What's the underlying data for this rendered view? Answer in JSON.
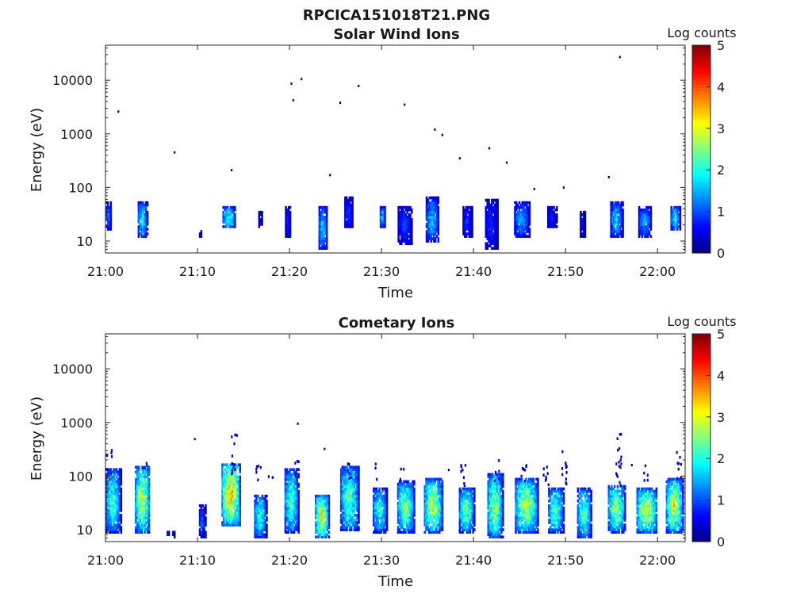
{
  "figure_title": "RPCICA151018T21.PNG",
  "chart_data": [
    {
      "type": "heatmap",
      "title": "Solar Wind Ions",
      "xlabel": "Time",
      "ylabel": "Energy (eV)",
      "yscale": "log",
      "ylim": [
        6,
        45000
      ],
      "xlim_minutes_after_2100": [
        0,
        63
      ],
      "x_tick_labels": [
        "21:00",
        "21:10",
        "21:20",
        "21:30",
        "21:40",
        "21:50",
        "22:00"
      ],
      "y_tick_labels": [
        "10",
        "100",
        "1000",
        "10000"
      ],
      "colorbar": {
        "label": "Log counts",
        "range": [
          0,
          5
        ],
        "tick_labels": [
          "0",
          "1",
          "2",
          "3",
          "4",
          "5"
        ],
        "colormap": "jet"
      },
      "blobs": [
        {
          "t": 0.3,
          "w": 0.6,
          "lo": 16,
          "hi": 55,
          "peak": 1.3
        },
        {
          "t": 4.0,
          "w": 1.0,
          "lo": 12,
          "hi": 55,
          "peak": 2.0
        },
        {
          "t": 10.3,
          "w": 0.3,
          "lo": 12,
          "hi": 16,
          "peak": 0.5
        },
        {
          "t": 13.4,
          "w": 1.4,
          "lo": 17,
          "hi": 45,
          "peak": 2.1
        },
        {
          "t": 16.8,
          "w": 0.4,
          "lo": 17,
          "hi": 35,
          "peak": 0.6
        },
        {
          "t": 19.8,
          "w": 0.6,
          "lo": 12,
          "hi": 45,
          "peak": 0.8
        },
        {
          "t": 23.6,
          "w": 0.9,
          "lo": 7,
          "hi": 45,
          "peak": 1.8
        },
        {
          "t": 26.4,
          "w": 0.9,
          "lo": 17,
          "hi": 65,
          "peak": 1.0
        },
        {
          "t": 30.1,
          "w": 0.6,
          "lo": 17,
          "hi": 45,
          "peak": 1.7
        },
        {
          "t": 32.5,
          "w": 1.5,
          "lo": 9,
          "hi": 45,
          "peak": 1.0
        },
        {
          "t": 35.5,
          "w": 1.4,
          "lo": 10,
          "hi": 65,
          "peak": 1.7
        },
        {
          "t": 39.3,
          "w": 1.0,
          "lo": 12,
          "hi": 45,
          "peak": 0.9
        },
        {
          "t": 41.9,
          "w": 1.3,
          "lo": 7,
          "hi": 60,
          "peak": 0.9
        },
        {
          "t": 45.2,
          "w": 1.6,
          "lo": 12,
          "hi": 55,
          "peak": 1.5
        },
        {
          "t": 48.5,
          "w": 1.0,
          "lo": 17,
          "hi": 45,
          "peak": 0.8
        },
        {
          "t": 51.8,
          "w": 0.5,
          "lo": 12,
          "hi": 35,
          "peak": 0.7
        },
        {
          "t": 55.5,
          "w": 1.3,
          "lo": 12,
          "hi": 55,
          "peak": 1.8
        },
        {
          "t": 58.6,
          "w": 1.4,
          "lo": 12,
          "hi": 45,
          "peak": 1.5
        },
        {
          "t": 61.9,
          "w": 1.0,
          "lo": 16,
          "hi": 45,
          "peak": 2.0
        }
      ],
      "isolated_points": [
        {
          "t": 1.4,
          "e": 2600
        },
        {
          "t": 7.5,
          "e": 450
        },
        {
          "t": 13.7,
          "e": 210
        },
        {
          "t": 20.2,
          "e": 8600
        },
        {
          "t": 20.4,
          "e": 4200
        },
        {
          "t": 21.3,
          "e": 10500
        },
        {
          "t": 24.4,
          "e": 170
        },
        {
          "t": 25.5,
          "e": 3800
        },
        {
          "t": 27.5,
          "e": 7800
        },
        {
          "t": 32.5,
          "e": 3500
        },
        {
          "t": 35.8,
          "e": 1200
        },
        {
          "t": 36.6,
          "e": 950
        },
        {
          "t": 38.5,
          "e": 350
        },
        {
          "t": 41.7,
          "e": 540
        },
        {
          "t": 43.6,
          "e": 290
        },
        {
          "t": 46.6,
          "e": 93
        },
        {
          "t": 49.8,
          "e": 100
        },
        {
          "t": 54.7,
          "e": 155
        },
        {
          "t": 55.9,
          "e": 27000
        }
      ]
    },
    {
      "type": "heatmap",
      "title": "Cometary Ions",
      "xlabel": "Time",
      "ylabel": "Energy (eV)",
      "yscale": "log",
      "ylim": [
        6,
        45000
      ],
      "xlim_minutes_after_2100": [
        0,
        63
      ],
      "x_tick_labels": [
        "21:00",
        "21:10",
        "21:20",
        "21:30",
        "21:40",
        "21:50",
        "22:00"
      ],
      "y_tick_labels": [
        "10",
        "100",
        "1000",
        "10000"
      ],
      "colorbar": {
        "label": "Log counts",
        "range": [
          0,
          5
        ],
        "tick_labels": [
          "0",
          "1",
          "2",
          "3",
          "4",
          "5"
        ],
        "colormap": "jet"
      },
      "blobs": [
        {
          "t": 0.8,
          "w": 1.6,
          "lo": 9,
          "hi": 140,
          "peak": 2.3
        },
        {
          "t": 4.0,
          "w": 1.6,
          "lo": 9,
          "hi": 160,
          "peak": 3.0
        },
        {
          "t": 6.8,
          "w": 0.3,
          "lo": 7,
          "hi": 10,
          "peak": 0.6
        },
        {
          "t": 7.4,
          "w": 0.3,
          "lo": 7,
          "hi": 10,
          "peak": 0.6
        },
        {
          "t": 10.5,
          "w": 0.7,
          "lo": 7,
          "hi": 30,
          "peak": 1.2
        },
        {
          "t": 13.6,
          "w": 2.0,
          "lo": 12,
          "hi": 180,
          "peak": 3.6
        },
        {
          "t": 16.8,
          "w": 1.3,
          "lo": 7,
          "hi": 45,
          "peak": 2.2
        },
        {
          "t": 20.2,
          "w": 1.5,
          "lo": 9,
          "hi": 140,
          "peak": 2.4
        },
        {
          "t": 23.5,
          "w": 1.5,
          "lo": 7,
          "hi": 45,
          "peak": 3.3
        },
        {
          "t": 26.5,
          "w": 2.0,
          "lo": 10,
          "hi": 160,
          "peak": 2.5
        },
        {
          "t": 29.8,
          "w": 1.5,
          "lo": 9,
          "hi": 60,
          "peak": 2.2
        },
        {
          "t": 32.6,
          "w": 1.8,
          "lo": 9,
          "hi": 80,
          "peak": 2.7
        },
        {
          "t": 35.6,
          "w": 2.0,
          "lo": 9,
          "hi": 90,
          "peak": 3.0
        },
        {
          "t": 39.2,
          "w": 1.6,
          "lo": 9,
          "hi": 60,
          "peak": 2.6
        },
        {
          "t": 42.3,
          "w": 1.6,
          "lo": 7,
          "hi": 110,
          "peak": 2.8
        },
        {
          "t": 45.7,
          "w": 2.4,
          "lo": 9,
          "hi": 90,
          "peak": 3.0
        },
        {
          "t": 48.9,
          "w": 1.6,
          "lo": 9,
          "hi": 60,
          "peak": 2.5
        },
        {
          "t": 52.0,
          "w": 1.5,
          "lo": 7,
          "hi": 60,
          "peak": 2.5
        },
        {
          "t": 55.5,
          "w": 1.8,
          "lo": 9,
          "hi": 70,
          "peak": 2.8
        },
        {
          "t": 58.8,
          "w": 2.2,
          "lo": 9,
          "hi": 60,
          "peak": 3.1
        },
        {
          "t": 61.8,
          "w": 1.8,
          "lo": 9,
          "hi": 90,
          "peak": 3.2
        }
      ],
      "columns": [
        {
          "t": 0.3,
          "lo": 110,
          "hi": 400
        },
        {
          "t": 4.2,
          "lo": 130,
          "hi": 230
        },
        {
          "t": 13.9,
          "lo": 100,
          "hi": 650
        },
        {
          "t": 16.5,
          "lo": 90,
          "hi": 170
        },
        {
          "t": 17.8,
          "lo": 90,
          "hi": 140
        },
        {
          "t": 20.8,
          "lo": 100,
          "hi": 220
        },
        {
          "t": 26.3,
          "lo": 90,
          "hi": 190
        },
        {
          "t": 29.3,
          "lo": 90,
          "hi": 180
        },
        {
          "t": 32.2,
          "lo": 80,
          "hi": 150
        },
        {
          "t": 38.8,
          "lo": 60,
          "hi": 180
        },
        {
          "t": 42.5,
          "lo": 80,
          "hi": 210
        },
        {
          "t": 45.4,
          "lo": 80,
          "hi": 180
        },
        {
          "t": 47.8,
          "lo": 70,
          "hi": 220
        },
        {
          "t": 49.8,
          "lo": 70,
          "hi": 330
        },
        {
          "t": 55.7,
          "lo": 70,
          "hi": 820
        },
        {
          "t": 58.7,
          "lo": 70,
          "hi": 170
        },
        {
          "t": 62.3,
          "lo": 90,
          "hi": 300
        }
      ],
      "isolated_points": [
        {
          "t": 9.7,
          "e": 490
        },
        {
          "t": 20.9,
          "e": 950
        },
        {
          "t": 23.8,
          "e": 320
        },
        {
          "t": 37.3,
          "e": 130
        },
        {
          "t": 57.2,
          "e": 160
        }
      ]
    }
  ]
}
